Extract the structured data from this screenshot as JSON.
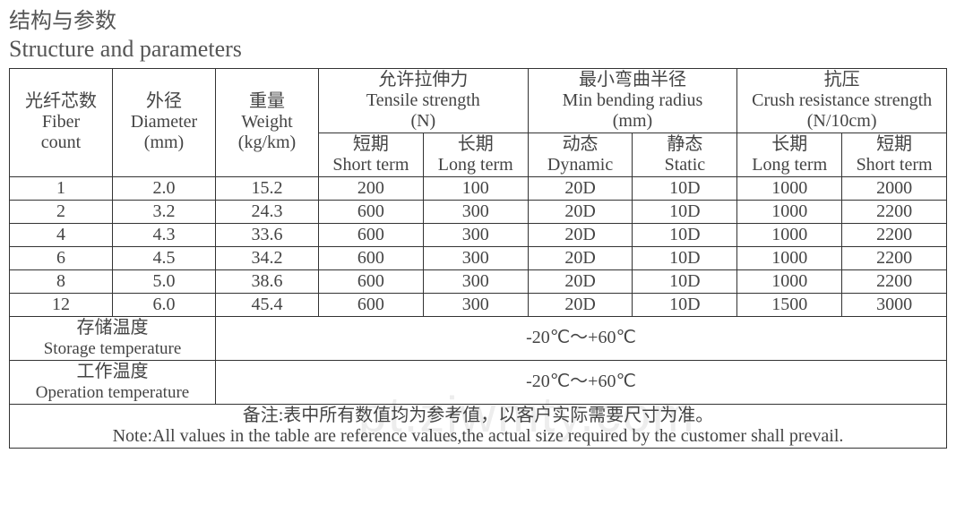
{
  "title": {
    "cn": "结构与参数",
    "en": "Structure and parameters"
  },
  "colors": {
    "text": "#444444",
    "border": "#333333",
    "title": "#555555",
    "bg": "#ffffff",
    "watermark": "#dddddd"
  },
  "fonts": {
    "body": "Times New Roman / SimSun",
    "title_size": 26,
    "cell_size": 20
  },
  "table": {
    "type": "table",
    "border_width": 1.5,
    "headers": {
      "fiber": {
        "cn": "光纤芯数",
        "en": "Fiber count"
      },
      "diameter": {
        "cn": "外径",
        "en": "Diameter",
        "unit": "(mm)"
      },
      "weight": {
        "cn": "重量",
        "en": "Weight",
        "unit": "(kg/km)"
      },
      "tensile": {
        "cn": "允许拉伸力",
        "en": "Tensile strength",
        "unit": "(N)",
        "sub_short": {
          "cn": "短期",
          "en": "Short term"
        },
        "sub_long": {
          "cn": "长期",
          "en": "Long term"
        }
      },
      "bend": {
        "cn": "最小弯曲半径",
        "en": "Min bending radius",
        "unit": "(mm)",
        "sub_dyn": {
          "cn": "动态",
          "en": "Dynamic"
        },
        "sub_stat": {
          "cn": "静态",
          "en": "Static"
        }
      },
      "crush": {
        "cn": "抗压",
        "en": "Crush resistance strength",
        "unit": "(N/10cm)",
        "sub_long": {
          "cn": "长期",
          "en": "Long term"
        },
        "sub_short": {
          "cn": "短期",
          "en": "Short term"
        }
      }
    },
    "rows": [
      {
        "fiber": "1",
        "diameter": "2.0",
        "weight": "15.2",
        "t_short": "200",
        "t_long": "100",
        "b_dyn": "20D",
        "b_stat": "10D",
        "c_long": "1000",
        "c_short": "2000"
      },
      {
        "fiber": "2",
        "diameter": "3.2",
        "weight": "24.3",
        "t_short": "600",
        "t_long": "300",
        "b_dyn": "20D",
        "b_stat": "10D",
        "c_long": "1000",
        "c_short": "2200"
      },
      {
        "fiber": "4",
        "diameter": "4.3",
        "weight": "33.6",
        "t_short": "600",
        "t_long": "300",
        "b_dyn": "20D",
        "b_stat": "10D",
        "c_long": "1000",
        "c_short": "2200"
      },
      {
        "fiber": "6",
        "diameter": "4.5",
        "weight": "34.2",
        "t_short": "600",
        "t_long": "300",
        "b_dyn": "20D",
        "b_stat": "10D",
        "c_long": "1000",
        "c_short": "2200"
      },
      {
        "fiber": "8",
        "diameter": "5.0",
        "weight": "38.6",
        "t_short": "600",
        "t_long": "300",
        "b_dyn": "20D",
        "b_stat": "10D",
        "c_long": "1000",
        "c_short": "2200"
      },
      {
        "fiber": "12",
        "diameter": "6.0",
        "weight": "45.4",
        "t_short": "600",
        "t_long": "300",
        "b_dyn": "20D",
        "b_stat": "10D",
        "c_long": "1500",
        "c_short": "3000"
      }
    ],
    "storage": {
      "label_cn": "存储温度",
      "label_en": "Storage temperature",
      "value": "-20℃～+60℃"
    },
    "operation": {
      "label_cn": "工作温度",
      "label_en": "Operation temperature",
      "value": "-20℃～+60℃"
    },
    "note": {
      "cn": "备注:表中所有数值均为参考值，以客户实际需要尺寸为准。",
      "en": "Note:All values in the table are reference values,the actual size required by the customer shall prevail."
    }
  },
  "watermark": "pt.zjwmty.com"
}
